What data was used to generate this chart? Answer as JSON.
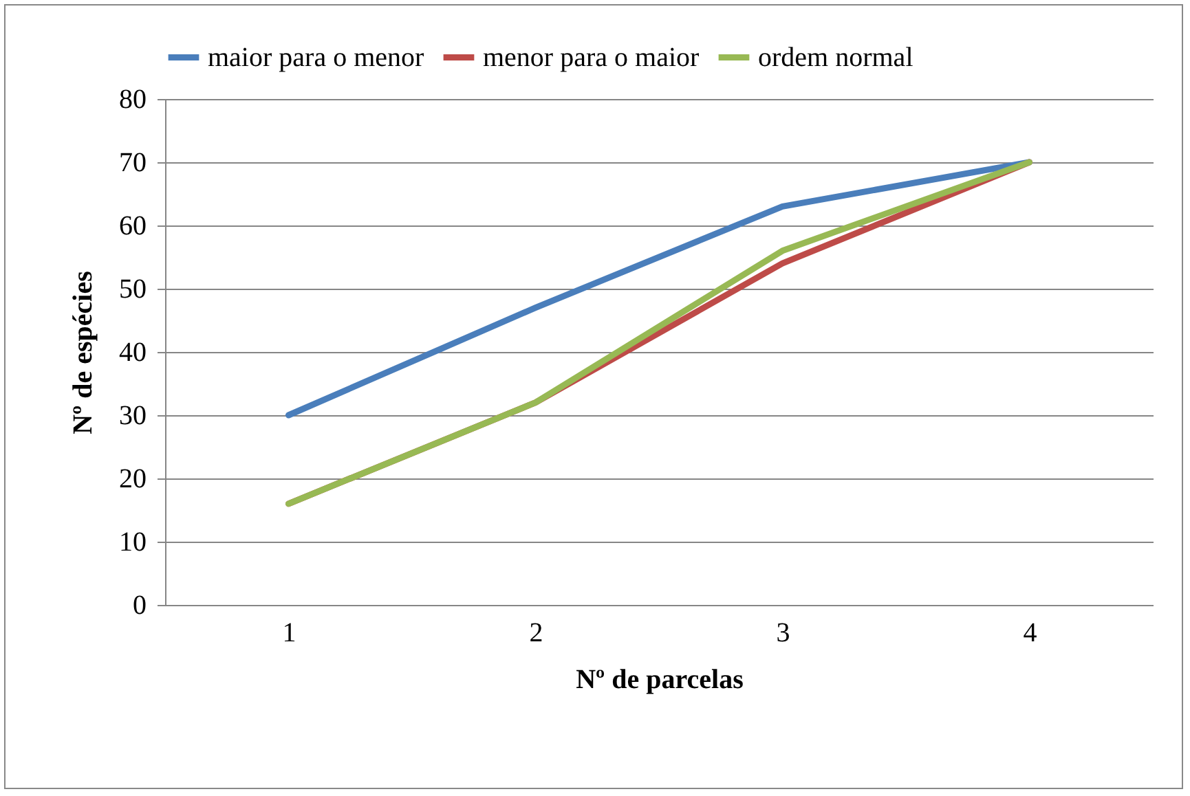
{
  "chart_data": {
    "type": "line",
    "xlabel": "Nº de parcelas",
    "ylabel": "Nº de espécies",
    "categories": [
      "1",
      "2",
      "3",
      "4"
    ],
    "series": [
      {
        "name": "maior para o menor",
        "color": "#4a7ebb",
        "values": [
          30,
          47,
          63,
          70
        ]
      },
      {
        "name": "menor para o maior",
        "color": "#be4b48",
        "values": [
          16,
          32,
          54,
          70
        ]
      },
      {
        "name": "ordem normal",
        "color": "#98b954",
        "values": [
          16,
          32,
          56,
          70
        ]
      }
    ],
    "ylim": [
      0,
      80
    ],
    "yticks": [
      0,
      10,
      20,
      30,
      40,
      50,
      60,
      70,
      80
    ],
    "grid": "y",
    "legend": "top",
    "marker": "none",
    "line_style": "solid"
  }
}
